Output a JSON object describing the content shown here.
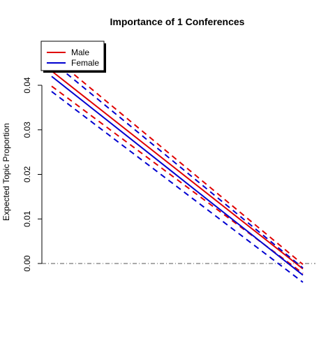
{
  "chart_data": {
    "type": "line",
    "title": "Importance of 1 Conferences",
    "xlabel": "",
    "ylabel": "Expected Topic Proportion",
    "x_ticks_shown": false,
    "xlim": [
      0,
      1
    ],
    "ylim": [
      -0.0085,
      0.0425
    ],
    "yticks": [
      0.0,
      0.01,
      0.02,
      0.03,
      0.04
    ],
    "ytick_labels": [
      "0.00",
      "0.01",
      "0.02",
      "0.03",
      "0.04"
    ],
    "reference_line": {
      "y": 0.0,
      "style": "dash-dot",
      "color": "#555555"
    },
    "legend": {
      "position": "top-left",
      "boxed": true
    },
    "series": [
      {
        "name": "Male",
        "color": "#e00000",
        "x": [
          0,
          1
        ],
        "values": [
          0.0432,
          -0.0012
        ],
        "ci_lower": [
          0.0398,
          -0.0022
        ],
        "ci_upper": [
          0.0466,
          -0.0002
        ]
      },
      {
        "name": "Female",
        "color": "#0000d0",
        "x": [
          0,
          1
        ],
        "values": [
          0.042,
          -0.0026
        ],
        "ci_lower": [
          0.0386,
          -0.0042
        ],
        "ci_upper": [
          0.0454,
          -0.001
        ]
      }
    ]
  }
}
